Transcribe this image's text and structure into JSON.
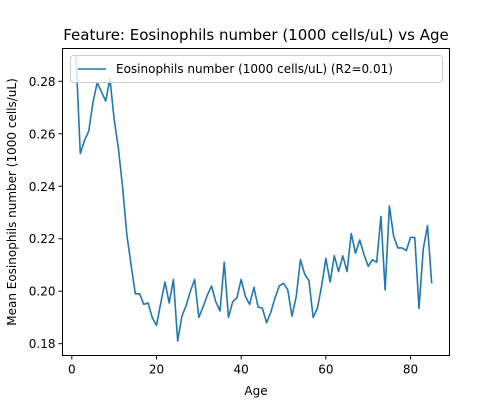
{
  "chart_data": {
    "type": "line",
    "title": "Feature: Eosinophils number (1000 cells/uL) vs Age",
    "xlabel": "Age",
    "ylabel": "Mean Eosinophils number (1000 cells/uL)",
    "xlim": [
      -2.2,
      89.2
    ],
    "ylim": [
      0.1755,
      0.2925
    ],
    "xticks": [
      0,
      20,
      40,
      60,
      80
    ],
    "xtick_labels": [
      "0",
      "20",
      "40",
      "60",
      "80"
    ],
    "yticks": [
      0.18,
      0.2,
      0.22,
      0.24,
      0.26,
      0.28
    ],
    "ytick_labels": [
      "0.18",
      "0.20",
      "0.22",
      "0.24",
      "0.26",
      "0.28"
    ],
    "grid": false,
    "legend_position": "top-right",
    "series": [
      {
        "name": "Eosinophils number (1000 cells/uL) (R2=0.01)",
        "color": "#1f77b4",
        "x": [
          1,
          2,
          3,
          4,
          5,
          6,
          7,
          8,
          9,
          10,
          11,
          12,
          13,
          14,
          15,
          16,
          17,
          18,
          19,
          20,
          21,
          22,
          23,
          24,
          25,
          26,
          27,
          28,
          29,
          30,
          31,
          32,
          33,
          34,
          35,
          36,
          37,
          38,
          39,
          40,
          41,
          42,
          43,
          44,
          45,
          46,
          47,
          48,
          49,
          50,
          51,
          52,
          53,
          54,
          55,
          56,
          57,
          58,
          59,
          60,
          61,
          62,
          63,
          64,
          65,
          66,
          67,
          68,
          69,
          70,
          71,
          72,
          73,
          74,
          75,
          76,
          77,
          78,
          79,
          80,
          81,
          82,
          83,
          84,
          85
        ],
        "y": [
          0.2895,
          0.2525,
          0.2575,
          0.261,
          0.272,
          0.2795,
          0.276,
          0.2725,
          0.281,
          0.2655,
          0.2545,
          0.2395,
          0.2215,
          0.21,
          0.199,
          0.199,
          0.195,
          0.1955,
          0.19,
          0.187,
          0.1955,
          0.2035,
          0.1955,
          0.2045,
          0.181,
          0.1905,
          0.1945,
          0.2,
          0.2045,
          0.19,
          0.194,
          0.1985,
          0.202,
          0.196,
          0.1925,
          0.211,
          0.19,
          0.196,
          0.1975,
          0.2045,
          0.198,
          0.195,
          0.2015,
          0.194,
          0.1935,
          0.188,
          0.192,
          0.1975,
          0.202,
          0.203,
          0.2005,
          0.1905,
          0.198,
          0.212,
          0.2065,
          0.204,
          0.19,
          0.1935,
          0.202,
          0.2125,
          0.2035,
          0.2135,
          0.2075,
          0.2135,
          0.2075,
          0.222,
          0.2145,
          0.2195,
          0.214,
          0.2095,
          0.212,
          0.211,
          0.2285,
          0.2005,
          0.2325,
          0.221,
          0.2165,
          0.2165,
          0.2155,
          0.2205,
          0.2205,
          0.1935,
          0.216,
          0.225,
          0.203
        ]
      }
    ]
  }
}
